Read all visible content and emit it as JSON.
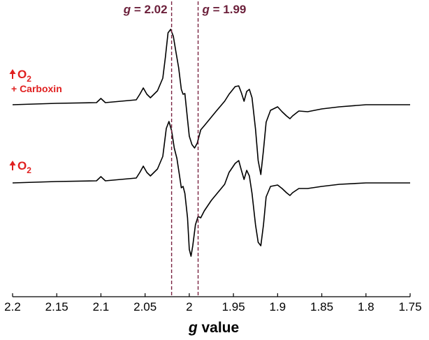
{
  "chart_data": {
    "type": "line",
    "title": "",
    "xlabel_italic": "g",
    "xlabel_rest": " value",
    "xlim": [
      2.2,
      1.75
    ],
    "x_reversed": true,
    "xticks": [
      2.2,
      2.15,
      2.1,
      2.05,
      2,
      1.95,
      1.9,
      1.85,
      1.8,
      1.75
    ],
    "xtick_labels": [
      "2.2",
      "2.15",
      "2.1",
      "2.05",
      "2",
      "1.95",
      "1.9",
      "1.85",
      "1.8",
      "1.75"
    ],
    "y_axis_shown": false,
    "grid": false,
    "legend": "none",
    "reference_lines": [
      {
        "x": 2.02,
        "label_italic": "g",
        "label_rest": " = 2.02",
        "style": "dashed"
      },
      {
        "x": 1.99,
        "label_italic": "g",
        "label_rest": " = 1.99",
        "style": "dashed"
      }
    ],
    "series": [
      {
        "label_main": "O",
        "label_sub": "2",
        "label_line2": "+ Carboxin",
        "points": [
          [
            2.2,
            0
          ],
          [
            2.15,
            0.02
          ],
          [
            2.105,
            0.03
          ],
          [
            2.1,
            0.09
          ],
          [
            2.095,
            0.03
          ],
          [
            2.06,
            0.07
          ],
          [
            2.056,
            0.15
          ],
          [
            2.052,
            0.24
          ],
          [
            2.048,
            0.15
          ],
          [
            2.044,
            0.1
          ],
          [
            2.036,
            0.2
          ],
          [
            2.03,
            0.38
          ],
          [
            2.027,
            0.68
          ],
          [
            2.024,
            1.03
          ],
          [
            2.021,
            1.08
          ],
          [
            2.018,
            0.98
          ],
          [
            2.015,
            0.75
          ],
          [
            2.012,
            0.53
          ],
          [
            2.009,
            0.22
          ],
          [
            2.007,
            0.15
          ],
          [
            2.005,
            0.16
          ],
          [
            2.002,
            -0.21
          ],
          [
            2.0,
            -0.45
          ],
          [
            1.997,
            -0.57
          ],
          [
            1.994,
            -0.62
          ],
          [
            1.991,
            -0.55
          ],
          [
            1.987,
            -0.36
          ],
          [
            1.983,
            -0.3
          ],
          [
            1.97,
            -0.1
          ],
          [
            1.96,
            0.05
          ],
          [
            1.955,
            0.15
          ],
          [
            1.948,
            0.26
          ],
          [
            1.944,
            0.27
          ],
          [
            1.941,
            0.17
          ],
          [
            1.938,
            0.05
          ],
          [
            1.935,
            0.19
          ],
          [
            1.932,
            0.22
          ],
          [
            1.929,
            0.1
          ],
          [
            1.925,
            -0.35
          ],
          [
            1.922,
            -0.8
          ],
          [
            1.919,
            -1.0
          ],
          [
            1.916,
            -0.65
          ],
          [
            1.913,
            -0.25
          ],
          [
            1.908,
            -0.08
          ],
          [
            1.9,
            -0.03
          ],
          [
            1.895,
            -0.1
          ],
          [
            1.89,
            -0.16
          ],
          [
            1.886,
            -0.2
          ],
          [
            1.883,
            -0.16
          ],
          [
            1.876,
            -0.09
          ],
          [
            1.866,
            -0.1
          ],
          [
            1.85,
            -0.06
          ],
          [
            1.83,
            -0.03
          ],
          [
            1.8,
            0
          ],
          [
            1.75,
            0
          ]
        ]
      },
      {
        "label_main": "O",
        "label_sub": "2",
        "label_line2": "",
        "points": [
          [
            2.2,
            0
          ],
          [
            2.15,
            0.02
          ],
          [
            2.105,
            0.03
          ],
          [
            2.1,
            0.09
          ],
          [
            2.095,
            0.03
          ],
          [
            2.06,
            0.07
          ],
          [
            2.056,
            0.15
          ],
          [
            2.052,
            0.24
          ],
          [
            2.048,
            0.15
          ],
          [
            2.044,
            0.1
          ],
          [
            2.036,
            0.2
          ],
          [
            2.03,
            0.38
          ],
          [
            2.026,
            0.78
          ],
          [
            2.023,
            0.88
          ],
          [
            2.02,
            0.75
          ],
          [
            2.017,
            0.5
          ],
          [
            2.014,
            0.35
          ],
          [
            2.011,
            0.1
          ],
          [
            2.009,
            -0.07
          ],
          [
            2.007,
            -0.05
          ],
          [
            2.005,
            -0.15
          ],
          [
            2.002,
            -0.5
          ],
          [
            2.0,
            -0.95
          ],
          [
            1.998,
            -1.05
          ],
          [
            1.996,
            -0.9
          ],
          [
            1.993,
            -0.6
          ],
          [
            1.99,
            -0.48
          ],
          [
            1.987,
            -0.5
          ],
          [
            1.983,
            -0.4
          ],
          [
            1.975,
            -0.25
          ],
          [
            1.96,
            -0.02
          ],
          [
            1.955,
            0.15
          ],
          [
            1.948,
            0.28
          ],
          [
            1.944,
            0.32
          ],
          [
            1.941,
            0.18
          ],
          [
            1.938,
            0.05
          ],
          [
            1.935,
            0.18
          ],
          [
            1.932,
            0.1
          ],
          [
            1.929,
            -0.15
          ],
          [
            1.925,
            -0.6
          ],
          [
            1.922,
            -0.85
          ],
          [
            1.919,
            -0.9
          ],
          [
            1.916,
            -0.6
          ],
          [
            1.913,
            -0.2
          ],
          [
            1.908,
            -0.05
          ],
          [
            1.9,
            -0.03
          ],
          [
            1.895,
            -0.08
          ],
          [
            1.89,
            -0.14
          ],
          [
            1.886,
            -0.18
          ],
          [
            1.883,
            -0.14
          ],
          [
            1.876,
            -0.08
          ],
          [
            1.866,
            -0.08
          ],
          [
            1.85,
            -0.05
          ],
          [
            1.83,
            -0.02
          ],
          [
            1.8,
            0
          ],
          [
            1.75,
            0
          ]
        ]
      }
    ],
    "colors": {
      "trace": "#000000",
      "reference_line": "#7a2341",
      "reference_label": "#6b1f3a",
      "trace_label": "#e02020"
    }
  }
}
